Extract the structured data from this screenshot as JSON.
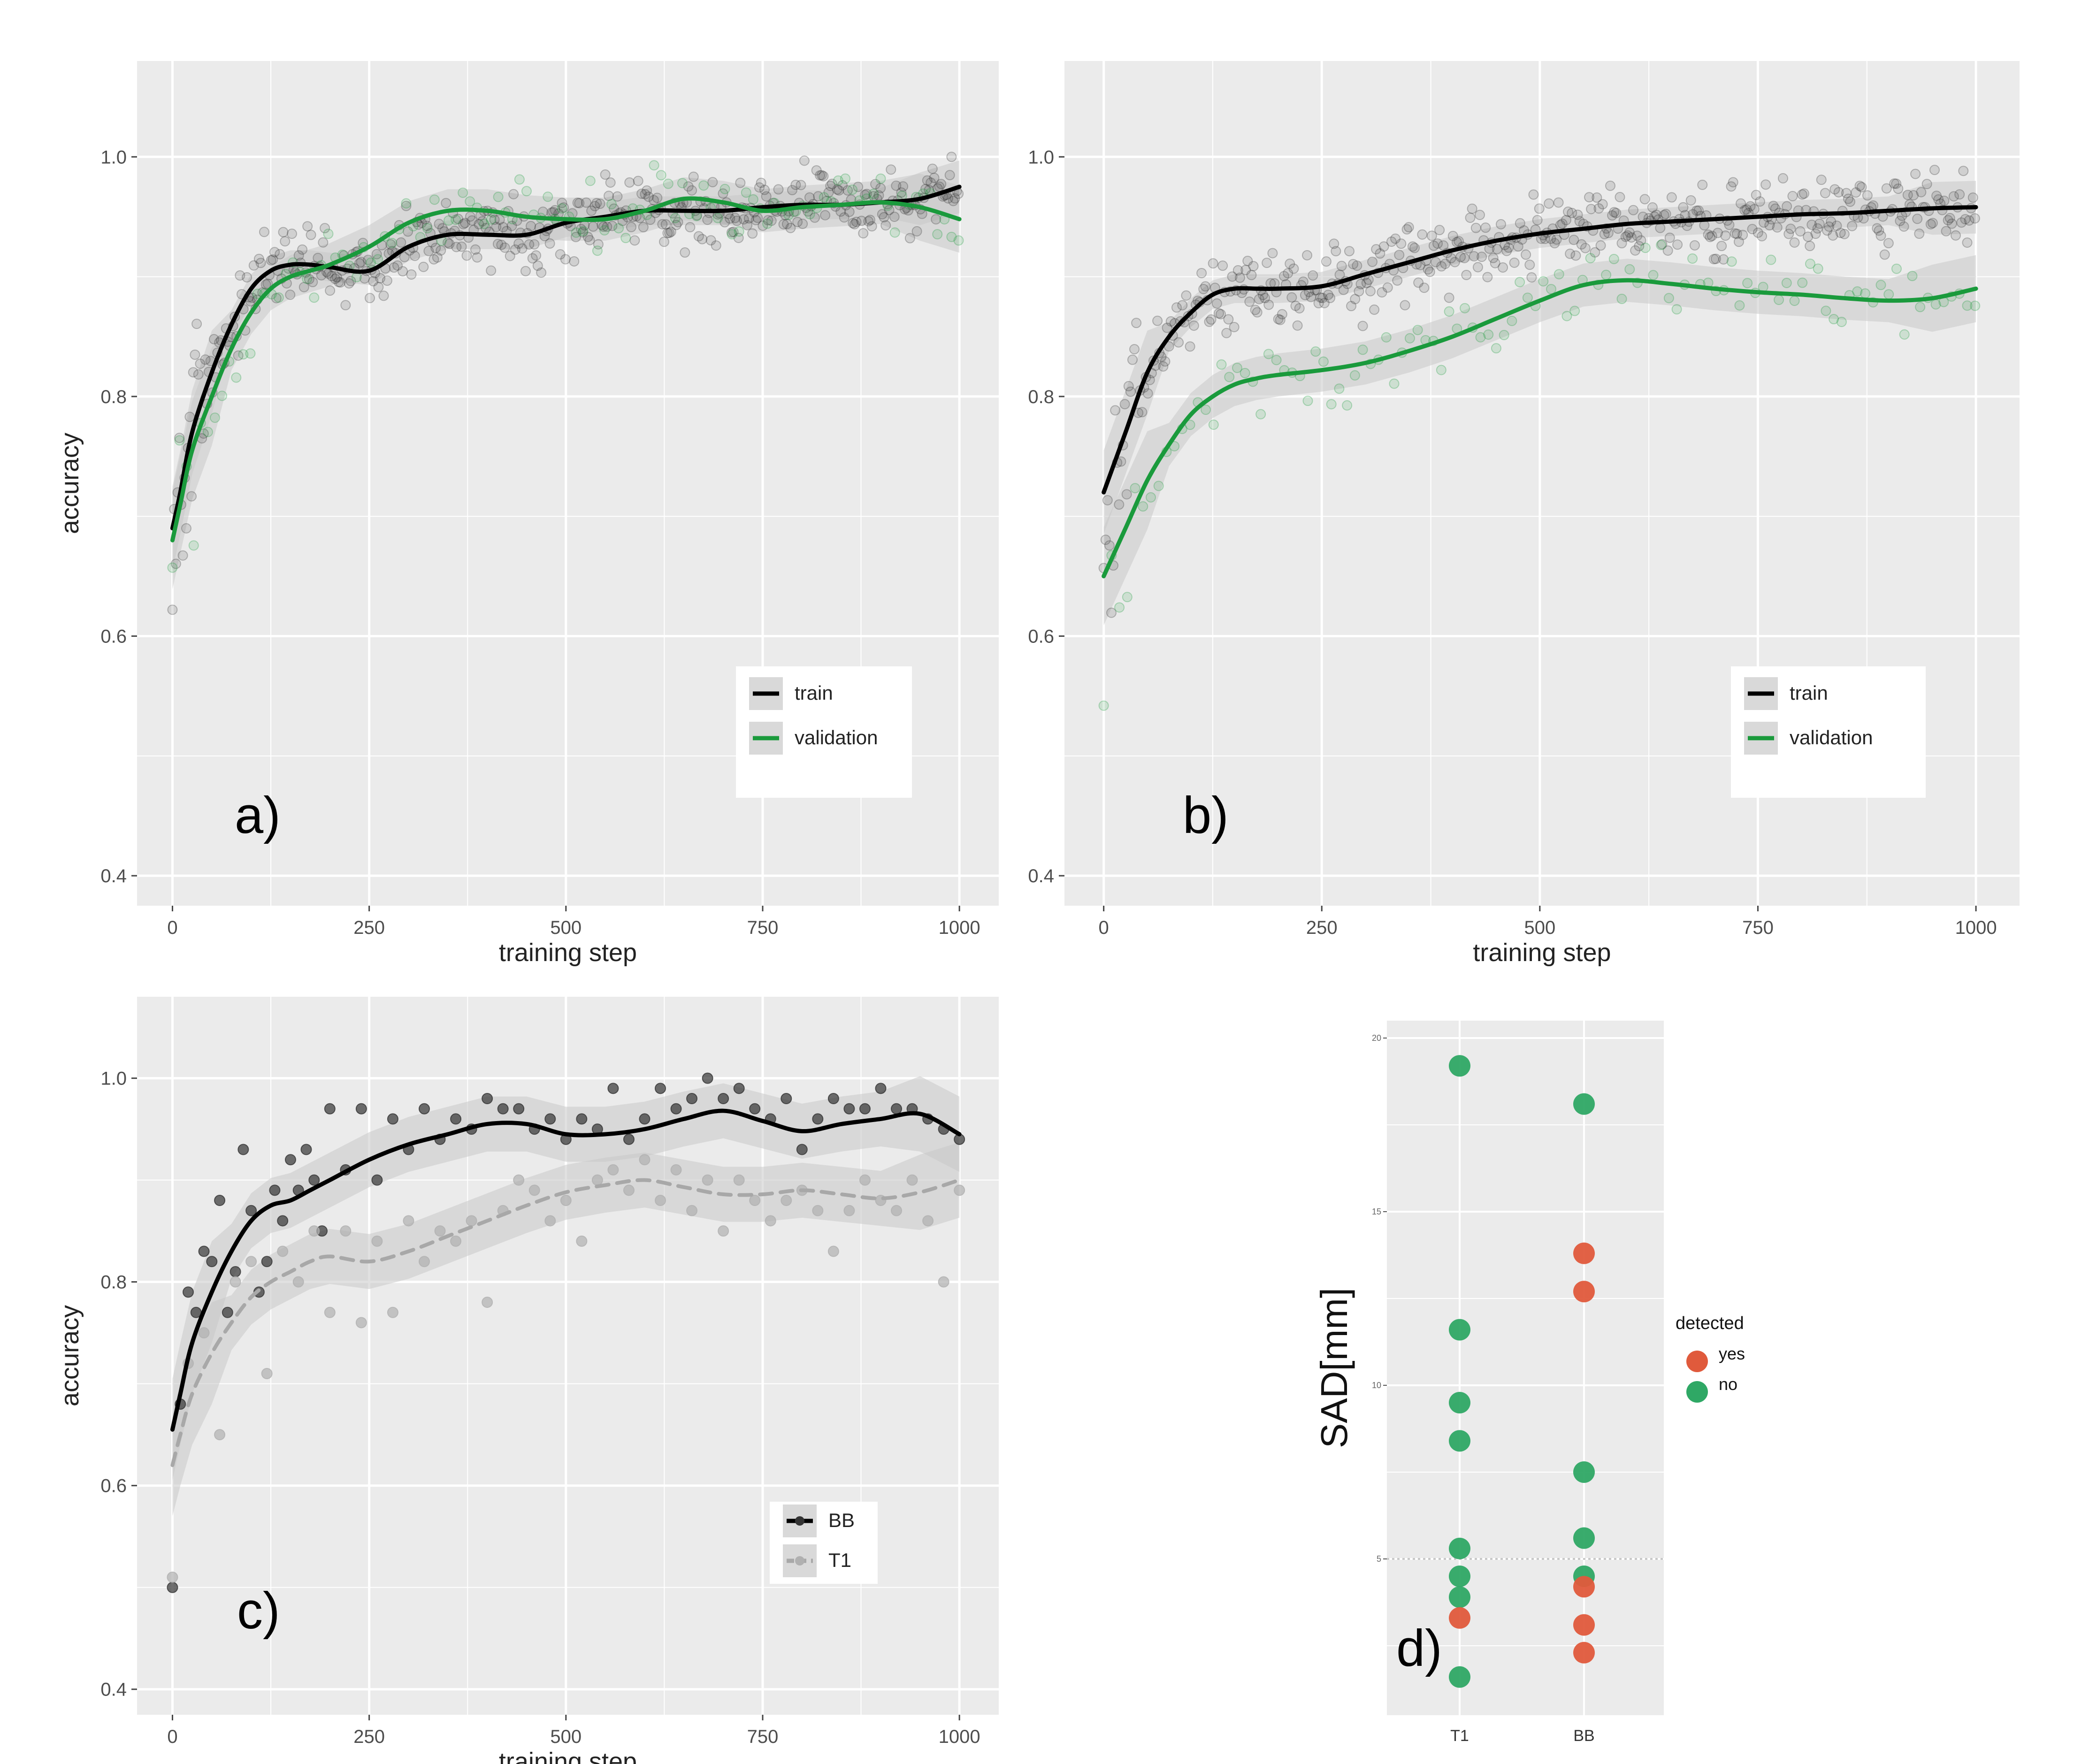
{
  "figure": {
    "description_labels": [
      "a)",
      "b)",
      "c)",
      "d)"
    ]
  },
  "colors": {
    "panel_bg": "#ebebeb",
    "grid": "#ffffff",
    "train": "#000000",
    "validation": "#1a9a3c",
    "t1": "#a8a8a8",
    "yes": "#e05a3c",
    "no": "#2fa865",
    "ribbon": "#c9c9c9"
  },
  "chart_data": [
    {
      "type": "scatter",
      "panel_label": "a)",
      "xlabel": "training step",
      "ylabel": "accuracy",
      "xlim": [
        -45,
        1050
      ],
      "ylim": [
        0.375,
        1.08
      ],
      "xticks": [
        "0",
        "250",
        "500",
        "750",
        "1000"
      ],
      "yticks": [
        "0.4",
        "0.6",
        "0.8",
        "1.0"
      ],
      "legend": {
        "position": "bottom-right",
        "entries": [
          "train",
          "validation"
        ]
      },
      "series": [
        {
          "name": "train",
          "smooth_x": [
            0,
            10,
            25,
            50,
            75,
            100,
            125,
            150,
            175,
            200,
            250,
            300,
            350,
            400,
            450,
            500,
            550,
            600,
            650,
            700,
            750,
            800,
            850,
            900,
            950,
            1000
          ],
          "smooth_y": [
            0.69,
            0.72,
            0.77,
            0.82,
            0.86,
            0.89,
            0.905,
            0.91,
            0.91,
            0.908,
            0.905,
            0.925,
            0.935,
            0.935,
            0.935,
            0.945,
            0.95,
            0.955,
            0.955,
            0.955,
            0.958,
            0.96,
            0.96,
            0.962,
            0.965,
            0.975
          ]
        },
        {
          "name": "validation",
          "smooth_x": [
            0,
            10,
            25,
            50,
            75,
            100,
            125,
            150,
            175,
            200,
            250,
            300,
            350,
            400,
            450,
            500,
            550,
            600,
            650,
            700,
            750,
            800,
            850,
            900,
            950,
            1000
          ],
          "smooth_y": [
            0.68,
            0.71,
            0.755,
            0.8,
            0.84,
            0.87,
            0.89,
            0.9,
            0.905,
            0.91,
            0.925,
            0.945,
            0.955,
            0.955,
            0.95,
            0.948,
            0.948,
            0.955,
            0.965,
            0.962,
            0.955,
            0.958,
            0.96,
            0.962,
            0.958,
            0.948
          ]
        }
      ]
    },
    {
      "type": "scatter",
      "panel_label": "b)",
      "xlabel": "training step",
      "ylabel": "",
      "xlim": [
        -45,
        1050
      ],
      "ylim": [
        0.375,
        1.08
      ],
      "xticks": [
        "0",
        "250",
        "500",
        "750",
        "1000"
      ],
      "yticks": [
        "0.4",
        "0.6",
        "0.8",
        "1.0"
      ],
      "legend": {
        "position": "bottom-right",
        "entries": [
          "train",
          "validation"
        ]
      },
      "series": [
        {
          "name": "train",
          "smooth_x": [
            0,
            25,
            50,
            75,
            100,
            125,
            150,
            175,
            200,
            250,
            300,
            350,
            400,
            450,
            500,
            550,
            600,
            650,
            700,
            750,
            800,
            850,
            900,
            950,
            1000
          ],
          "smooth_y": [
            0.72,
            0.77,
            0.82,
            0.85,
            0.87,
            0.885,
            0.89,
            0.89,
            0.89,
            0.892,
            0.902,
            0.912,
            0.922,
            0.93,
            0.936,
            0.94,
            0.944,
            0.946,
            0.948,
            0.95,
            0.952,
            0.953,
            0.955,
            0.957,
            0.958
          ]
        },
        {
          "name": "validation",
          "smooth_x": [
            0,
            25,
            50,
            75,
            100,
            125,
            150,
            175,
            200,
            250,
            300,
            350,
            400,
            450,
            500,
            550,
            600,
            650,
            700,
            750,
            800,
            850,
            900,
            950,
            1000
          ],
          "smooth_y": [
            0.65,
            0.69,
            0.73,
            0.76,
            0.785,
            0.8,
            0.81,
            0.815,
            0.818,
            0.822,
            0.828,
            0.838,
            0.85,
            0.865,
            0.88,
            0.893,
            0.897,
            0.894,
            0.89,
            0.887,
            0.885,
            0.882,
            0.88,
            0.882,
            0.89
          ]
        }
      ]
    },
    {
      "type": "scatter",
      "panel_label": "c)",
      "xlabel": "training step",
      "ylabel": "accuracy",
      "xlim": [
        -45,
        1050
      ],
      "ylim": [
        0.375,
        1.08
      ],
      "xticks": [
        "0",
        "250",
        "500",
        "750",
        "1000"
      ],
      "yticks": [
        "0.4",
        "0.6",
        "0.8",
        "1.0"
      ],
      "legend": {
        "position": "bottom-right",
        "entries": [
          "BB",
          "T1"
        ]
      },
      "series": [
        {
          "name": "BB",
          "smooth_x": [
            0,
            10,
            25,
            50,
            75,
            100,
            125,
            150,
            175,
            200,
            250,
            300,
            350,
            400,
            450,
            500,
            550,
            600,
            650,
            700,
            750,
            800,
            850,
            900,
            950,
            1000
          ],
          "smooth_y": [
            0.655,
            0.69,
            0.74,
            0.79,
            0.83,
            0.86,
            0.875,
            0.88,
            0.89,
            0.9,
            0.92,
            0.935,
            0.945,
            0.955,
            0.955,
            0.945,
            0.945,
            0.95,
            0.96,
            0.968,
            0.958,
            0.948,
            0.955,
            0.96,
            0.965,
            0.945
          ],
          "points_x": [
            0,
            10,
            20,
            30,
            40,
            50,
            60,
            70,
            80,
            90,
            100,
            110,
            120,
            130,
            140,
            150,
            160,
            170,
            180,
            190,
            200,
            220,
            240,
            260,
            280,
            300,
            320,
            340,
            360,
            380,
            400,
            420,
            440,
            460,
            480,
            500,
            520,
            540,
            560,
            580,
            600,
            620,
            640,
            660,
            680,
            700,
            720,
            740,
            760,
            780,
            800,
            820,
            840,
            860,
            880,
            900,
            920,
            940,
            960,
            980,
            1000
          ],
          "points_y": [
            0.5,
            0.68,
            0.79,
            0.77,
            0.83,
            0.82,
            0.88,
            0.77,
            0.81,
            0.93,
            0.87,
            0.79,
            0.82,
            0.89,
            0.86,
            0.92,
            0.89,
            0.93,
            0.9,
            0.85,
            0.97,
            0.91,
            0.97,
            0.9,
            0.96,
            0.93,
            0.97,
            0.94,
            0.96,
            0.95,
            0.98,
            0.97,
            0.97,
            0.95,
            0.96,
            0.94,
            0.96,
            0.95,
            0.99,
            0.94,
            0.96,
            0.99,
            0.97,
            0.98,
            1.0,
            0.98,
            0.99,
            0.97,
            0.96,
            0.98,
            0.93,
            0.96,
            0.98,
            0.97,
            0.97,
            0.99,
            0.97,
            0.97,
            0.96,
            0.95,
            0.94
          ]
        },
        {
          "name": "T1",
          "smooth_x": [
            0,
            10,
            25,
            50,
            75,
            100,
            125,
            150,
            175,
            200,
            250,
            300,
            350,
            400,
            450,
            500,
            550,
            600,
            650,
            700,
            750,
            800,
            850,
            900,
            950,
            1000
          ],
          "smooth_y": [
            0.62,
            0.65,
            0.69,
            0.73,
            0.76,
            0.785,
            0.8,
            0.81,
            0.82,
            0.825,
            0.82,
            0.83,
            0.845,
            0.86,
            0.875,
            0.888,
            0.895,
            0.9,
            0.893,
            0.886,
            0.886,
            0.89,
            0.886,
            0.882,
            0.888,
            0.9
          ],
          "points_x": [
            0,
            20,
            40,
            60,
            80,
            100,
            120,
            140,
            160,
            180,
            200,
            220,
            240,
            260,
            280,
            300,
            320,
            340,
            360,
            380,
            400,
            420,
            440,
            460,
            480,
            500,
            520,
            540,
            560,
            580,
            600,
            620,
            640,
            660,
            680,
            700,
            720,
            740,
            760,
            780,
            800,
            820,
            840,
            860,
            880,
            900,
            920,
            940,
            960,
            980,
            1000
          ],
          "points_y": [
            0.51,
            0.72,
            0.75,
            0.65,
            0.8,
            0.82,
            0.71,
            0.83,
            0.8,
            0.85,
            0.77,
            0.85,
            0.76,
            0.84,
            0.77,
            0.86,
            0.82,
            0.85,
            0.84,
            0.86,
            0.78,
            0.87,
            0.9,
            0.89,
            0.86,
            0.88,
            0.84,
            0.9,
            0.91,
            0.89,
            0.92,
            0.88,
            0.91,
            0.87,
            0.9,
            0.85,
            0.9,
            0.88,
            0.86,
            0.88,
            0.89,
            0.87,
            0.83,
            0.87,
            0.9,
            0.88,
            0.87,
            0.9,
            0.86,
            0.8,
            0.89
          ]
        }
      ]
    },
    {
      "type": "scatter",
      "panel_label": "d)",
      "xlabel": "",
      "ylabel": "SAD[mm]",
      "categories": [
        "T1",
        "BB"
      ],
      "ylim": [
        0.5,
        20.5
      ],
      "yticks": [
        "5",
        "10",
        "15",
        "20"
      ],
      "reference_line": 5,
      "legend": {
        "position": "right",
        "title": "detected",
        "entries": [
          "yes",
          "no"
        ]
      },
      "series": [
        {
          "name": "T1",
          "points": [
            {
              "y": 19.2,
              "detected": "no"
            },
            {
              "y": 11.6,
              "detected": "no"
            },
            {
              "y": 9.5,
              "detected": "no"
            },
            {
              "y": 8.4,
              "detected": "no"
            },
            {
              "y": 5.3,
              "detected": "no"
            },
            {
              "y": 4.5,
              "detected": "no"
            },
            {
              "y": 3.9,
              "detected": "no"
            },
            {
              "y": 3.3,
              "detected": "yes"
            },
            {
              "y": 1.6,
              "detected": "no"
            }
          ]
        },
        {
          "name": "BB",
          "points": [
            {
              "y": 18.1,
              "detected": "no"
            },
            {
              "y": 13.8,
              "detected": "yes"
            },
            {
              "y": 12.7,
              "detected": "yes"
            },
            {
              "y": 7.5,
              "detected": "no"
            },
            {
              "y": 5.6,
              "detected": "no"
            },
            {
              "y": 4.5,
              "detected": "no"
            },
            {
              "y": 4.2,
              "detected": "yes"
            },
            {
              "y": 3.1,
              "detected": "yes"
            },
            {
              "y": 2.3,
              "detected": "yes"
            }
          ]
        }
      ]
    }
  ]
}
